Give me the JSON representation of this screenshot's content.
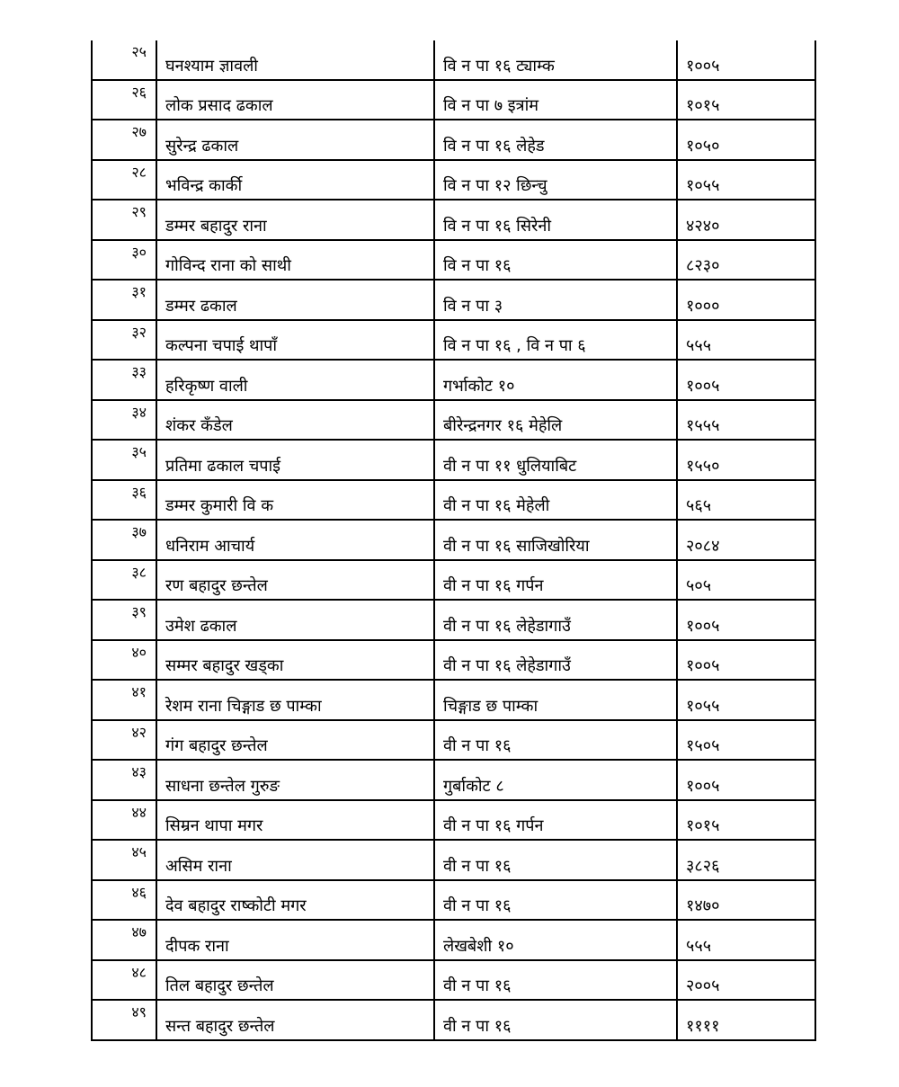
{
  "rows": [
    {
      "sn": "२५",
      "name": "घनश्याम ज्ञावली",
      "address": " वि न पा १६ ट्याम्क",
      "amount": "१००५"
    },
    {
      "sn": "२६",
      "name": "लोक प्रसाद ढकाल",
      "address": "वि न पा ७ इत्रांम",
      "amount": "१०१५"
    },
    {
      "sn": "२७",
      "name": "सुरेन्द्र ढकाल",
      "address": "वि न पा १६  लेहेड",
      "amount": "१०५०"
    },
    {
      "sn": "२८",
      "name": "भविन्द्र कार्की",
      "address": "वि न पा १२ छिन्चु",
      "amount": "१०५५"
    },
    {
      "sn": "२९",
      "name": "डम्मर बहादुर राना",
      "address": "वि न पा १६ सिरेनी",
      "amount": "४२४०"
    },
    {
      "sn": "३०",
      "name": "गोविन्द राना को साथी",
      "address": "वि न पा १६",
      "amount": "८२३०"
    },
    {
      "sn": "३१",
      "name": "डम्मर ढकाल",
      "address": "वि न पा ३",
      "amount": "१०००"
    },
    {
      "sn": "३२",
      "name": "कल्पना चपाई थापाँ",
      "address": "वि न पा १६ , वि न पा ६",
      "amount": "५५५"
    },
    {
      "sn": "३३",
      "name": "हरिकृष्ण वाली",
      "address": "गर्भाकोट १०",
      "amount": "१००५"
    },
    {
      "sn": "३४",
      "name": "शंकर कँडेल",
      "address": "बीरेन्द्रनगर १६ मेहेलि",
      "amount": "१५५५"
    },
    {
      "sn": "३५",
      "name": "प्रतिमा ढकाल चपाई",
      "address": "वी न पा ११ धुलियाबिट",
      "amount": "१५५०"
    },
    {
      "sn": "३६",
      "name": "डम्मर कुमारी वि क",
      "address": "वी न पा १६ मेहेली",
      "amount": "५६५"
    },
    {
      "sn": "३७",
      "name": "धनिराम आचार्य",
      "address": "वी न पा १६ साजिखोरिया",
      "amount": "२०८४"
    },
    {
      "sn": "३८",
      "name": "रण बहादुर छन्तेल",
      "address": "वी न पा १६ गर्पन",
      "amount": "५०५"
    },
    {
      "sn": "३९",
      "name": "उमेश ढकाल",
      "address": "वी न पा १६ लेहेडागाउँ",
      "amount": "१००५"
    },
    {
      "sn": "४०",
      "name": "सम्मर बहादुर खड्का",
      "address": "वी न पा १६ लेहेडागाउँ",
      "amount": "१००५"
    },
    {
      "sn": "४१",
      "name": "रेशम राना चिङ्गाड छ पाम्का",
      "address": "चिङ्गाड छ पाम्का",
      "amount": "१०५५"
    },
    {
      "sn": "४२",
      "name": "गंग बहादुर छन्तेल",
      "address": "वी न पा १६",
      "amount": "१५०५"
    },
    {
      "sn": "४३",
      "name": "साधना छन्तेल गुरुङ",
      "address": "गुर्बाकोट ८",
      "amount": "१००५"
    },
    {
      "sn": "४४",
      "name": "सिम्रन थापा मगर",
      "address": "वी न पा १६ गर्पन",
      "amount": "१०१५"
    },
    {
      "sn": "४५",
      "name": "असिम राना",
      "address": "वी न पा १६",
      "amount": "३८२६"
    },
    {
      "sn": "४६",
      "name": "देव बहादुर राष्कोटी मगर",
      "address": "वी न पा १६",
      "amount": "१४७०"
    },
    {
      "sn": "४७",
      "name": "दीपक राना",
      "address": "लेखबेशी १०",
      "amount": "५५५"
    },
    {
      "sn": "४८",
      "name": "तिल बहादुर छन्तेल",
      "address": "वी न पा १६",
      "amount": "२००५"
    },
    {
      "sn": "४९",
      "name": "सन्त बहादुर छन्तेल",
      "address": "वी न पा १६",
      "amount": "११११"
    }
  ]
}
